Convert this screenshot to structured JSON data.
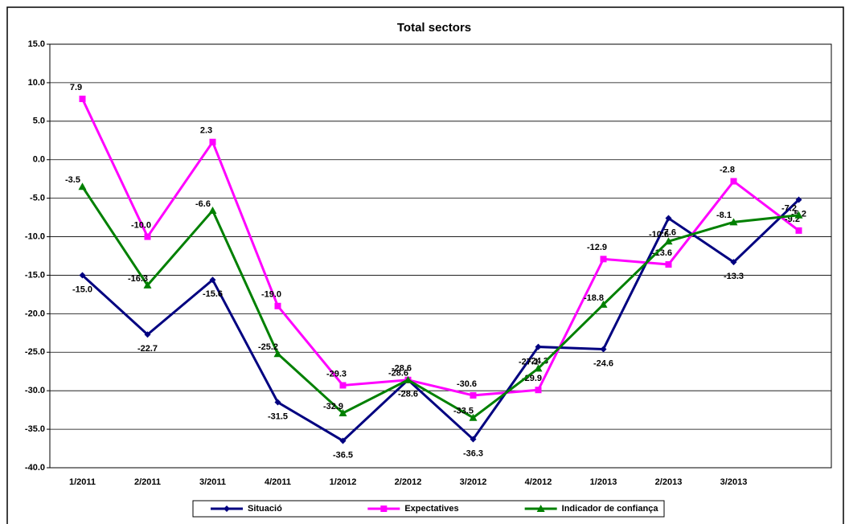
{
  "chart_data": {
    "type": "line",
    "title": "Total sectors",
    "categories": [
      "1/2011",
      "2/2011",
      "3/2011",
      "4/2011",
      "1/2012",
      "2/2012",
      "3/2012",
      "4/2012",
      "1/2013",
      "2/2013",
      "3/2013",
      null
    ],
    "series": [
      {
        "name": "Situació",
        "color": "#000080",
        "marker": "diamond",
        "values": [
          -15.0,
          -22.7,
          -15.6,
          -31.5,
          -36.5,
          -28.6,
          -36.3,
          -24.3,
          -24.6,
          -7.6,
          -13.3,
          -5.2
        ],
        "value_labels": [
          "-15.0",
          "-22.7",
          "-15.6",
          "-31.5",
          "-36.5",
          "-28.6",
          "-36.3",
          "-24.3",
          "-24.6",
          "-7.6",
          "-13.3",
          "-5.2"
        ]
      },
      {
        "name": "Expectatives",
        "color": "#ff00ff",
        "marker": "square",
        "values": [
          7.9,
          -10.0,
          2.3,
          -19.0,
          -29.3,
          -28.6,
          -30.6,
          -29.9,
          -12.9,
          -13.6,
          -2.8,
          -9.2
        ],
        "value_labels": [
          "7.9",
          "-10.0",
          "2.3",
          "-19.0",
          "-29.3",
          "-28.6",
          "-30.6",
          "-29.9",
          "-12.9",
          "-13.6",
          "-2.8",
          "-9.2"
        ]
      },
      {
        "name": "Indicador de confiança",
        "color": "#008000",
        "marker": "triangle",
        "values": [
          -3.5,
          -16.3,
          -6.6,
          -25.2,
          -32.9,
          -28.6,
          -33.5,
          -27.1,
          -18.8,
          -10.6,
          -8.1,
          -7.2
        ],
        "value_labels": [
          "-3.5",
          "-16.3",
          "-6.6",
          "-25.2",
          "-32.9",
          "-28.6",
          "-33.5",
          "-27.1",
          "-18.8",
          "-10.6",
          "-8.1",
          "-7.2"
        ]
      }
    ],
    "ylim": [
      -40,
      15
    ],
    "yticks": [
      {
        "value": -40,
        "label": "-40.0"
      },
      {
        "value": -35,
        "label": "-35.0"
      },
      {
        "value": -30,
        "label": "-30.0"
      },
      {
        "value": -25,
        "label": "-25.0"
      },
      {
        "value": -20,
        "label": "-20.0"
      },
      {
        "value": -15,
        "label": "-15.0"
      },
      {
        "value": -10,
        "label": "-10.0"
      },
      {
        "value": -5,
        "label": "-5.0"
      },
      {
        "value": 0,
        "label": "0.0"
      },
      {
        "value": 5,
        "label": "5.0"
      },
      {
        "value": 10,
        "label": "10.0"
      },
      {
        "value": 15,
        "label": "15.0"
      }
    ],
    "grid": true,
    "legend": "bottom"
  }
}
